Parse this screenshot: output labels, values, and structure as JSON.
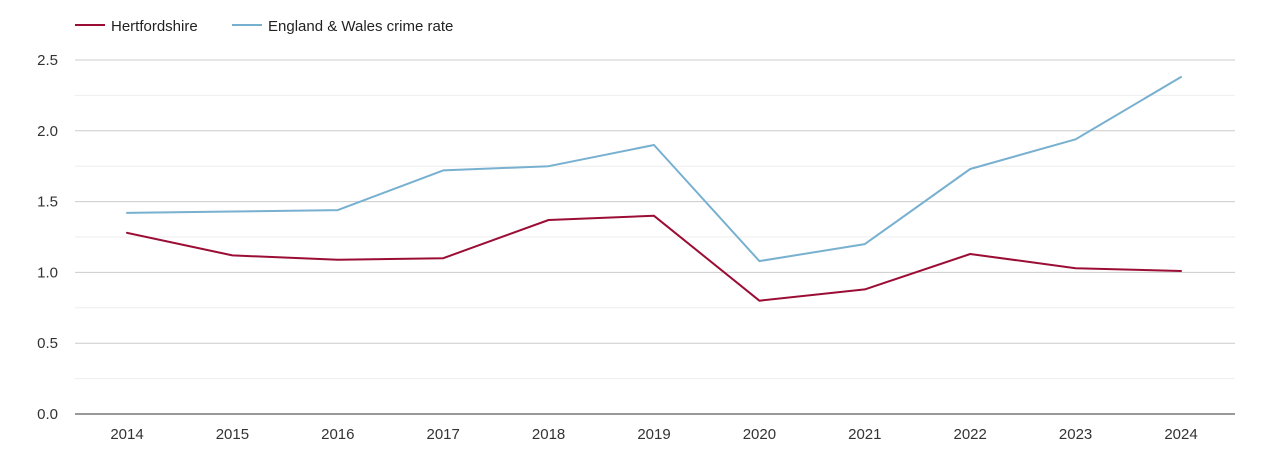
{
  "chart_data": {
    "type": "line",
    "title": "",
    "xlabel": "",
    "ylabel": "",
    "x": [
      "2014",
      "2015",
      "2016",
      "2017",
      "2018",
      "2019",
      "2020",
      "2021",
      "2022",
      "2023",
      "2024"
    ],
    "ylim": [
      0,
      2.5
    ],
    "y_ticks": [
      "0.0",
      "0.5",
      "1.0",
      "1.5",
      "2.0",
      "2.5"
    ],
    "grid": true,
    "legend_position": "top-left",
    "series": [
      {
        "name": "Hertfordshire",
        "color": "#9b0d35",
        "values": [
          1.28,
          1.12,
          1.09,
          1.1,
          1.37,
          1.4,
          0.8,
          0.88,
          1.13,
          1.03,
          1.01
        ]
      },
      {
        "name": "England & Wales crime rate",
        "color": "#78b0d0",
        "values": [
          1.42,
          1.43,
          1.44,
          1.72,
          1.75,
          1.9,
          1.08,
          1.2,
          1.73,
          1.94,
          2.38
        ]
      }
    ]
  }
}
